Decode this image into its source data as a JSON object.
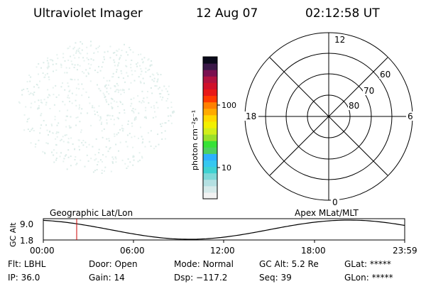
{
  "header": {
    "instrument": "Ultraviolet Imager",
    "date": "12 Aug 07",
    "time": "02:12:58 UT"
  },
  "colorbar": {
    "label": "photon cm⁻²s⁻¹",
    "tick_100": "100",
    "tick_10": "10",
    "colors": [
      "#f2f2f2",
      "#d6eaea",
      "#b4e0e2",
      "#7fd8d8",
      "#3fd2d2",
      "#36c8f0",
      "#2db0ff",
      "#4cd060",
      "#36e236",
      "#9ae02a",
      "#d2ee1a",
      "#f2f000",
      "#ffd800",
      "#ffaa00",
      "#ff8000",
      "#ff3a00",
      "#e81818",
      "#d0102a",
      "#b01240",
      "#7a1050",
      "#3a1848",
      "#0a0a1a"
    ]
  },
  "polar": {
    "mlt_12": "12",
    "mlt_18": "18",
    "mlt_6": "6",
    "mlt_0": "0",
    "lat_60": "60",
    "lat_70": "70",
    "lat_80": "80"
  },
  "timeline": {
    "axis_label_gc": "GC",
    "axis_label_alt": "Alt",
    "y_top": "9.0",
    "y_bottom": "1.8",
    "left_title": "Geographic Lat/Lon",
    "right_title": "Apex MLat/MLT",
    "ticks": [
      "00:00",
      "06:00",
      "12:00",
      "18:00",
      "23:59"
    ],
    "marker_color": "#cc0000"
  },
  "status": {
    "flt_label": "Flt:",
    "flt_value": "LBHL",
    "ip_label": "IP:",
    "ip_value": "36.0",
    "door_label": "Door:",
    "door_value": "Open",
    "gain_label": "Gain:",
    "gain_value": "14",
    "mode_label": "Mode:",
    "mode_value": "Normal",
    "dsp_label": "Dsp:",
    "dsp_value": "−117.2",
    "gcalt_label": "GC Alt:",
    "gcalt_value": "5.2 Re",
    "seq_label": "Seq:",
    "seq_value": "39",
    "glat_label": "GLat:",
    "glat_value": "*****",
    "glon_label": "GLon:",
    "glon_value": "*****"
  }
}
